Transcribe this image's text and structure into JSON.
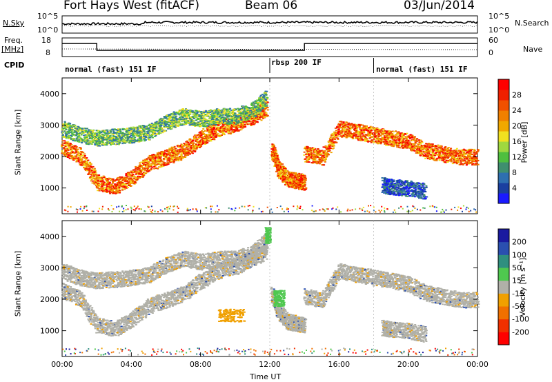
{
  "header": {
    "station": "Fort Hays West (fitACF)",
    "beam": "Beam 06",
    "date": "03/Jun/2014"
  },
  "aux": {
    "nsky_label": "N.Sky",
    "nsky_ticks": [
      "10^5",
      "10^0"
    ],
    "nsearch_label": "N.Search",
    "nsearch_ticks": [
      "10^5",
      "10^0"
    ],
    "freq_label": "Freq.",
    "freq_unit": "[MHz]",
    "freq_ticks": [
      "18",
      "8"
    ],
    "nave_label": "Nave",
    "nave_ticks": [
      "60",
      "0"
    ],
    "cpid_label": "CPID",
    "cpid_segments": [
      {
        "label": "normal (fast) 151 IF",
        "start": 0,
        "end": 12
      },
      {
        "label": "rbsp 200 IF",
        "start": 12,
        "end": 18
      },
      {
        "label": "normal (fast) 151 IF",
        "start": 18,
        "end": 24
      }
    ]
  },
  "axes": {
    "xlabel": "Time UT",
    "xticks": [
      "00:00",
      "04:00",
      "08:00",
      "12:00",
      "16:00",
      "20:00",
      "00:00"
    ],
    "ylabel": "Slant Range [km]",
    "yticks": [
      "1000",
      "2000",
      "3000",
      "4000"
    ]
  },
  "colorbars": {
    "power": {
      "label": "Power [dB]",
      "ticks": [
        "4",
        "8",
        "12",
        "16",
        "20",
        "24",
        "28"
      ],
      "colors": [
        "#1a1aff",
        "#1a3fa0",
        "#2e6fb0",
        "#3f8f6f",
        "#4fbf3f",
        "#9fd83f",
        "#f0e020",
        "#f0a800",
        "#f08000",
        "#f05000",
        "#f02000",
        "#ff0000"
      ]
    },
    "velocity": {
      "label": "Velocity [m s⁻¹]",
      "ticks": [
        "200",
        "100",
        "50",
        "15",
        "-15",
        "-50",
        "-100",
        "-200"
      ],
      "colors": [
        "#1a1a9f",
        "#2a4fb0",
        "#2f8f7f",
        "#4fc84f",
        "#b0b0a8",
        "#f0a000",
        "#f07000",
        "#f03000",
        "#ff0000"
      ]
    }
  },
  "chart_data": {
    "type": "heatmap",
    "title": "Fort Hays West (fitACF)",
    "x_range_hours": [
      0,
      24
    ],
    "y_range_km": [
      180,
      4500
    ],
    "panels": [
      {
        "name": "Power",
        "colorbar_range_db": [
          0,
          30
        ],
        "bands": [
          {
            "t": [
              0,
              1,
              2,
              3,
              4,
              5,
              6,
              7,
              8,
              9,
              10,
              11,
              11.8
            ],
            "range_km": [
              2300,
              2050,
              1200,
              1050,
              1350,
              1800,
              2000,
              2200,
              2600,
              2900,
              3050,
              3300,
              3550
            ],
            "strength": "high"
          },
          {
            "t": [
              0,
              1,
              2,
              3,
              4,
              5,
              6,
              7,
              8,
              9,
              10,
              11,
              11.8
            ],
            "range_km": [
              2900,
              2700,
              2600,
              2650,
              2700,
              2800,
              3100,
              3300,
              3200,
              3300,
              3300,
              3500,
              3900
            ],
            "strength": "medium"
          },
          {
            "t": [
              12.1,
              12.5,
              13,
              13.5,
              14
            ],
            "range_km": [
              2200,
              1600,
              1300,
              1250,
              1200
            ],
            "strength": "high"
          },
          {
            "t": [
              14,
              15,
              16,
              17,
              18,
              19,
              20,
              21,
              22,
              23,
              24
            ],
            "range_km": [
              2100,
              2000,
              2900,
              2800,
              2700,
              2600,
              2500,
              2200,
              2100,
              2000,
              2000
            ],
            "strength": "high"
          },
          {
            "t": [
              18.5,
              19,
              20,
              21
            ],
            "range_km": [
              1100,
              1050,
              1000,
              900
            ],
            "strength": "low"
          }
        ]
      },
      {
        "name": "Velocity",
        "colorbar_range_ms": [
          -200,
          200
        ],
        "dominant_value_ms": 0,
        "features": [
          {
            "t": [
              11.7,
              12
            ],
            "range_km": [
              3800,
              4300
            ],
            "velocity_ms": 40
          },
          {
            "t": [
              12.2,
              12.8
            ],
            "range_km": [
              1800,
              2300
            ],
            "velocity_ms": 40
          },
          {
            "t": [
              9,
              10.5
            ],
            "range_km": [
              1300,
              1700
            ],
            "velocity_ms": -40
          }
        ]
      }
    ]
  }
}
